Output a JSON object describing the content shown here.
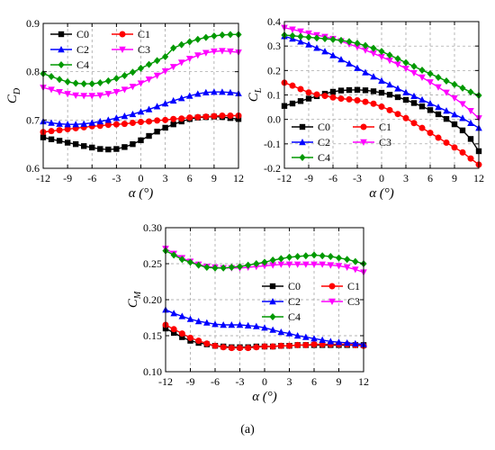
{
  "caption": "(a)",
  "chart_data": [
    {
      "type": "line",
      "panel": "CD",
      "ylabel": "C",
      "ylabel_sub": "D",
      "xlabel": "α (°)",
      "xlim": [
        -12,
        12
      ],
      "ylim": [
        0.6,
        0.9
      ],
      "xticks": [
        -12,
        -9,
        -6,
        -3,
        0,
        3,
        6,
        9,
        12
      ],
      "xtick_labels": [
        "-12",
        "-9",
        "-6",
        "-3",
        "0",
        "3",
        "6",
        "9",
        "12"
      ],
      "yticks": [
        0.6,
        0.7,
        0.8,
        0.9
      ],
      "ytick_labels": [
        "0.6",
        "0.7",
        "0.8",
        "0.9"
      ],
      "grid": true,
      "legend_position": "top-left",
      "legend_columns": 2,
      "x": [
        -12,
        -11,
        -10,
        -9,
        -8,
        -7,
        -6,
        -5,
        -4,
        -3,
        -2,
        -1,
        0,
        1,
        2,
        3,
        4,
        5,
        6,
        7,
        8,
        9,
        10,
        11,
        12
      ],
      "series": [
        {
          "name": "C0",
          "color": "#000000",
          "marker": "square",
          "values": [
            0.664,
            0.66,
            0.657,
            0.653,
            0.65,
            0.646,
            0.643,
            0.64,
            0.639,
            0.64,
            0.644,
            0.65,
            0.658,
            0.667,
            0.676,
            0.684,
            0.691,
            0.697,
            0.702,
            0.705,
            0.706,
            0.707,
            0.706,
            0.704,
            0.702
          ]
        },
        {
          "name": "C1",
          "color": "#ff0000",
          "marker": "circle",
          "values": [
            0.675,
            0.677,
            0.679,
            0.681,
            0.683,
            0.685,
            0.687,
            0.688,
            0.69,
            0.691,
            0.692,
            0.694,
            0.696,
            0.697,
            0.699,
            0.7,
            0.702,
            0.703,
            0.705,
            0.706,
            0.707,
            0.708,
            0.709,
            0.709,
            0.709
          ]
        },
        {
          "name": "C2",
          "color": "#0000ff",
          "marker": "triangle-up",
          "values": [
            0.697,
            0.694,
            0.692,
            0.691,
            0.691,
            0.692,
            0.694,
            0.697,
            0.7,
            0.704,
            0.708,
            0.712,
            0.717,
            0.722,
            0.728,
            0.734,
            0.74,
            0.745,
            0.75,
            0.754,
            0.757,
            0.758,
            0.758,
            0.757,
            0.755
          ]
        },
        {
          "name": "C3",
          "color": "#ff00ff",
          "marker": "triangle-down",
          "values": [
            0.767,
            0.763,
            0.758,
            0.754,
            0.751,
            0.75,
            0.75,
            0.751,
            0.754,
            0.758,
            0.763,
            0.769,
            0.776,
            0.784,
            0.792,
            0.801,
            0.81,
            0.819,
            0.827,
            0.834,
            0.839,
            0.842,
            0.843,
            0.842,
            0.84
          ]
        },
        {
          "name": "C4",
          "color": "#009900",
          "marker": "diamond",
          "values": [
            0.796,
            0.79,
            0.784,
            0.779,
            0.776,
            0.775,
            0.775,
            0.777,
            0.781,
            0.786,
            0.792,
            0.799,
            0.807,
            0.815,
            0.823,
            0.831,
            0.849,
            0.856,
            0.862,
            0.867,
            0.871,
            0.874,
            0.876,
            0.877,
            0.877
          ]
        }
      ]
    },
    {
      "type": "line",
      "panel": "CL",
      "ylabel": "C",
      "ylabel_sub": "L",
      "xlabel": "α (°)",
      "xlim": [
        -12,
        12
      ],
      "ylim": [
        -0.2,
        0.4
      ],
      "xticks": [
        -12,
        -9,
        -6,
        -3,
        0,
        3,
        6,
        9,
        12
      ],
      "xtick_labels": [
        "-12",
        "-9",
        "-6",
        "-3",
        "0",
        "3",
        "6",
        "9",
        "12"
      ],
      "yticks": [
        -0.2,
        -0.1,
        0.0,
        0.1,
        0.2,
        0.3,
        0.4
      ],
      "ytick_labels": [
        "-0.2",
        "-0.1",
        "0.0",
        "0.1",
        "0.2",
        "0.3",
        "0.4"
      ],
      "grid": true,
      "legend_position": "bottom-left",
      "legend_columns": 2,
      "x": [
        -12,
        -11,
        -10,
        -9,
        -8,
        -7,
        -6,
        -5,
        -4,
        -3,
        -2,
        -1,
        0,
        1,
        2,
        3,
        4,
        5,
        6,
        7,
        8,
        9,
        10,
        11,
        12
      ],
      "series": [
        {
          "name": "C0",
          "color": "#000000",
          "marker": "square",
          "values": [
            0.055,
            0.065,
            0.075,
            0.085,
            0.095,
            0.105,
            0.113,
            0.118,
            0.12,
            0.121,
            0.119,
            0.115,
            0.109,
            0.101,
            0.091,
            0.08,
            0.067,
            0.053,
            0.038,
            0.021,
            0.002,
            -0.02,
            -0.045,
            -0.08,
            -0.13
          ]
        },
        {
          "name": "C1",
          "color": "#ff0000",
          "marker": "circle",
          "values": [
            0.15,
            0.138,
            0.124,
            0.11,
            0.102,
            0.096,
            0.09,
            0.085,
            0.082,
            0.078,
            0.072,
            0.064,
            0.052,
            0.038,
            0.022,
            0.005,
            -0.015,
            -0.035,
            -0.055,
            -0.075,
            -0.095,
            -0.115,
            -0.135,
            -0.16,
            -0.185
          ]
        },
        {
          "name": "C2",
          "color": "#0000ff",
          "marker": "triangle-up",
          "values": [
            0.34,
            0.33,
            0.318,
            0.306,
            0.292,
            0.278,
            0.262,
            0.245,
            0.228,
            0.21,
            0.192,
            0.175,
            0.158,
            0.142,
            0.126,
            0.11,
            0.095,
            0.08,
            0.065,
            0.05,
            0.035,
            0.02,
            0.005,
            -0.015,
            -0.035
          ]
        },
        {
          "name": "C3",
          "color": "#ff00ff",
          "marker": "triangle-down",
          "values": [
            0.375,
            0.368,
            0.36,
            0.352,
            0.345,
            0.338,
            0.33,
            0.32,
            0.308,
            0.296,
            0.283,
            0.27,
            0.256,
            0.241,
            0.225,
            0.208,
            0.19,
            0.172,
            0.152,
            0.132,
            0.11,
            0.087,
            0.063,
            0.035,
            0.005
          ]
        },
        {
          "name": "C4",
          "color": "#009900",
          "marker": "diamond",
          "values": [
            0.345,
            0.342,
            0.339,
            0.336,
            0.333,
            0.33,
            0.327,
            0.323,
            0.318,
            0.311,
            0.302,
            0.291,
            0.278,
            0.263,
            0.248,
            0.232,
            0.217,
            0.201,
            0.187,
            0.172,
            0.157,
            0.143,
            0.128,
            0.112,
            0.098
          ]
        }
      ]
    },
    {
      "type": "line",
      "panel": "CM",
      "ylabel": "C",
      "ylabel_sub": "M",
      "xlabel": "α (°)",
      "xlim": [
        -12,
        12
      ],
      "ylim": [
        0.1,
        0.3
      ],
      "xticks": [
        -12,
        -9,
        -6,
        -3,
        0,
        3,
        6,
        9,
        12
      ],
      "xtick_labels": [
        "-12",
        "-9",
        "-6",
        "-3",
        "0",
        "3",
        "6",
        "9",
        "12"
      ],
      "yticks": [
        0.1,
        0.15,
        0.2,
        0.25,
        0.3
      ],
      "ytick_labels": [
        "0.10",
        "0.15",
        "0.20",
        "0.25",
        "0.30"
      ],
      "grid": true,
      "legend_position": "center-right",
      "legend_columns": 2,
      "x": [
        -12,
        -11,
        -10,
        -9,
        -8,
        -7,
        -6,
        -5,
        -4,
        -3,
        -2,
        -1,
        0,
        1,
        2,
        3,
        4,
        5,
        6,
        7,
        8,
        9,
        10,
        11,
        12
      ],
      "series": [
        {
          "name": "C0",
          "color": "#000000",
          "marker": "square",
          "values": [
            0.16,
            0.154,
            0.148,
            0.143,
            0.14,
            0.138,
            0.136,
            0.135,
            0.134,
            0.134,
            0.134,
            0.135,
            0.135,
            0.135,
            0.136,
            0.136,
            0.137,
            0.137,
            0.137,
            0.137,
            0.137,
            0.137,
            0.137,
            0.137,
            0.137
          ]
        },
        {
          "name": "C1",
          "color": "#ff0000",
          "marker": "circle",
          "values": [
            0.165,
            0.159,
            0.153,
            0.147,
            0.143,
            0.139,
            0.136,
            0.134,
            0.133,
            0.133,
            0.133,
            0.134,
            0.135,
            0.135,
            0.136,
            0.136,
            0.137,
            0.137,
            0.138,
            0.138,
            0.138,
            0.138,
            0.138,
            0.137,
            0.136
          ]
        },
        {
          "name": "C2",
          "color": "#0000ff",
          "marker": "triangle-up",
          "values": [
            0.186,
            0.181,
            0.177,
            0.173,
            0.17,
            0.168,
            0.166,
            0.165,
            0.165,
            0.165,
            0.164,
            0.163,
            0.161,
            0.158,
            0.155,
            0.153,
            0.15,
            0.148,
            0.146,
            0.144,
            0.142,
            0.141,
            0.14,
            0.139,
            0.138
          ]
        },
        {
          "name": "C3",
          "color": "#ff00ff",
          "marker": "triangle-down",
          "values": [
            0.271,
            0.264,
            0.258,
            0.253,
            0.249,
            0.246,
            0.245,
            0.244,
            0.244,
            0.244,
            0.245,
            0.246,
            0.247,
            0.248,
            0.249,
            0.249,
            0.249,
            0.249,
            0.249,
            0.249,
            0.248,
            0.247,
            0.245,
            0.242,
            0.238
          ]
        },
        {
          "name": "C4",
          "color": "#009900",
          "marker": "diamond",
          "values": [
            0.268,
            0.262,
            0.256,
            0.252,
            0.248,
            0.245,
            0.244,
            0.244,
            0.245,
            0.246,
            0.248,
            0.25,
            0.252,
            0.255,
            0.257,
            0.259,
            0.26,
            0.261,
            0.262,
            0.261,
            0.26,
            0.258,
            0.256,
            0.253,
            0.25
          ]
        }
      ]
    }
  ]
}
